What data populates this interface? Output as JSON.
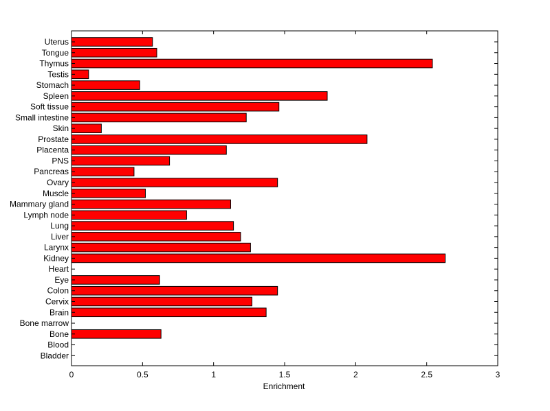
{
  "chart_data": {
    "type": "bar",
    "orientation": "horizontal",
    "xlabel": "Enrichment",
    "ylabel": "",
    "title": "",
    "xlim": [
      0,
      3
    ],
    "xticks": [
      0,
      0.5,
      1,
      1.5,
      2,
      2.5,
      3
    ],
    "xtick_labels": [
      "0",
      "0.5",
      "1",
      "1.5",
      "2",
      "2.5",
      "3"
    ],
    "grid": false,
    "bar_color": "#ff0000",
    "bar_edge_color": "#000000",
    "categories": [
      "Uterus",
      "Tongue",
      "Thymus",
      "Testis",
      "Stomach",
      "Spleen",
      "Soft tissue",
      "Small intestine",
      "Skin",
      "Prostate",
      "Placenta",
      "PNS",
      "Pancreas",
      "Ovary",
      "Muscle",
      "Mammary gland",
      "Lymph node",
      "Lung",
      "Liver",
      "Larynx",
      "Kidney",
      "Heart",
      "Eye",
      "Colon",
      "Cervix",
      "Brain",
      "Bone marrow",
      "Bone",
      "Blood",
      "Bladder"
    ],
    "values": [
      0.57,
      0.6,
      2.54,
      0.12,
      0.48,
      1.8,
      1.46,
      1.23,
      0.21,
      2.08,
      1.09,
      0.69,
      0.44,
      1.45,
      0.52,
      1.12,
      0.81,
      1.14,
      1.19,
      1.26,
      2.63,
      0,
      0.62,
      1.45,
      1.27,
      1.37,
      0,
      0.63,
      0,
      0
    ]
  }
}
